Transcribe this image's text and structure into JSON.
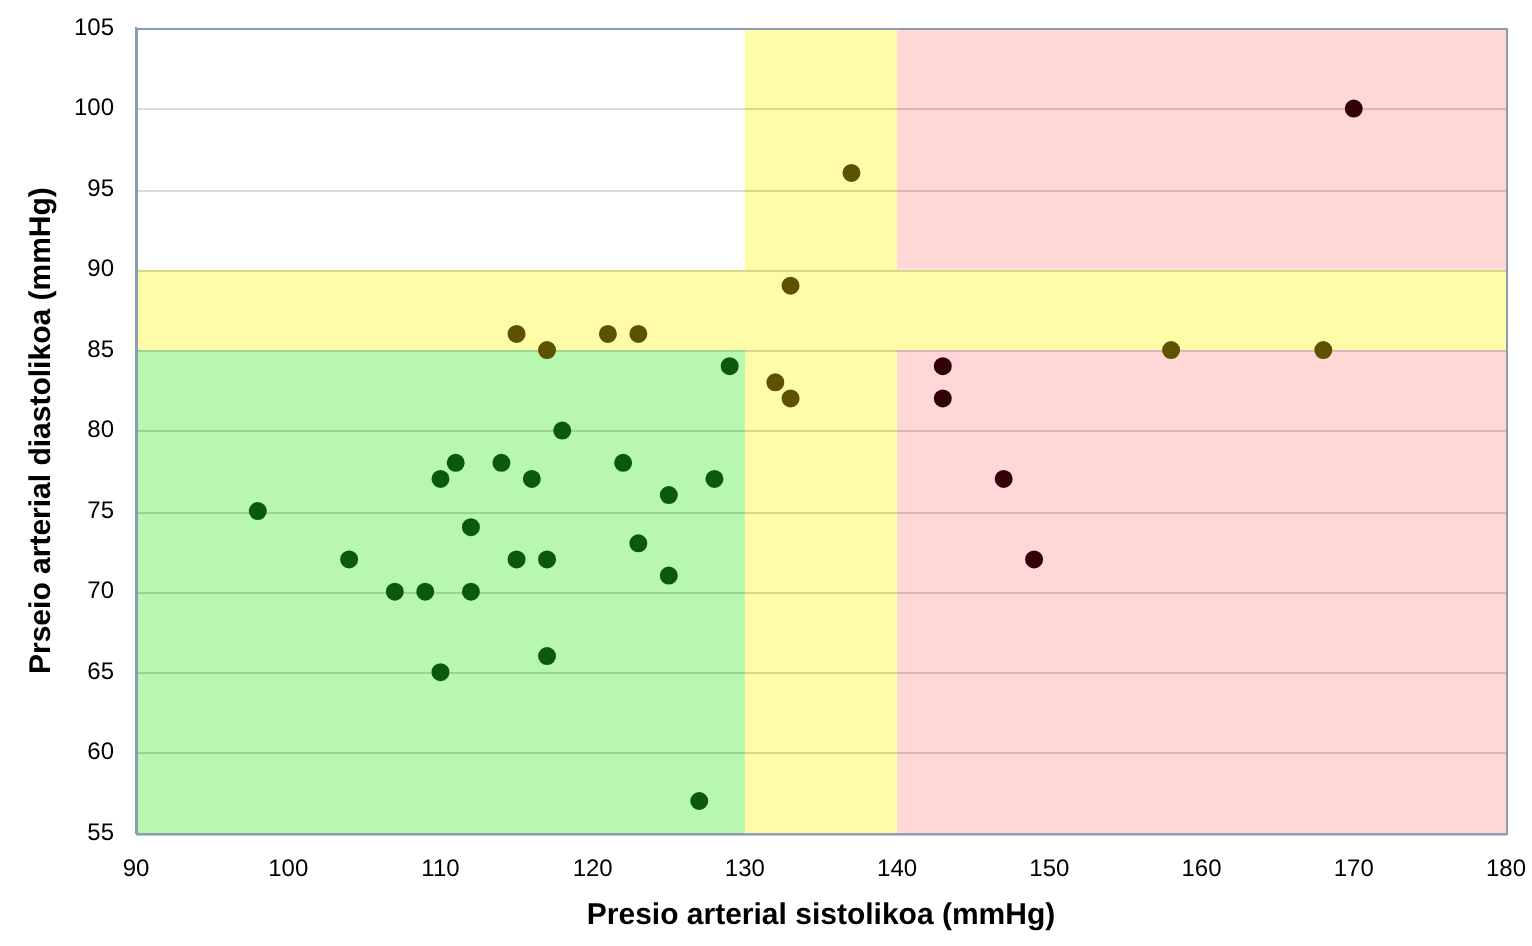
{
  "chart_data": {
    "type": "scatter",
    "xlabel": "Presio arterial sistolikoa (mmHg)",
    "ylabel": "Prseio arterial diastolikoa (mmHg)",
    "xlim": [
      90,
      180
    ],
    "xticks": [
      90,
      100,
      110,
      120,
      130,
      140,
      150,
      160,
      170,
      180
    ],
    "ylim": [
      55,
      105
    ],
    "yticks": [
      55,
      60,
      65,
      70,
      75,
      80,
      85,
      90,
      95,
      100,
      105
    ],
    "grid": "y",
    "marker": "circle",
    "legend": false,
    "bands": [
      {
        "axis": "y",
        "from": 55,
        "to": 85,
        "color": "#b7f7b0"
      },
      {
        "axis": "x",
        "from": 130,
        "to": 140,
        "color": "#fffca8"
      },
      {
        "axis": "x",
        "from": 140,
        "to": 180,
        "color": "#ffd7d7"
      },
      {
        "axis": "y",
        "from": 85,
        "to": 90,
        "color": "#fffca8"
      }
    ],
    "series": [
      {
        "color": "#0b5a0b",
        "x": [
          98,
          104,
          107,
          109,
          110,
          110,
          111,
          112,
          112,
          114,
          115,
          116,
          117,
          117,
          118,
          122,
          123,
          125,
          125,
          127,
          128,
          129
        ],
        "values": [
          75,
          72,
          70,
          70,
          77,
          65,
          78,
          74,
          70,
          78,
          72,
          77,
          72,
          66,
          80,
          78,
          73,
          76,
          71,
          57,
          77,
          84
        ]
      },
      {
        "color": "#5c5200",
        "x": [
          115,
          117,
          121,
          123,
          133,
          137,
          132,
          133,
          158,
          168
        ],
        "values": [
          86,
          85,
          86,
          86,
          89,
          96,
          83,
          82,
          85,
          85
        ]
      },
      {
        "color": "#33000a",
        "x": [
          143,
          143,
          147,
          149,
          170
        ],
        "values": [
          84,
          82,
          77,
          72,
          100
        ]
      }
    ]
  }
}
